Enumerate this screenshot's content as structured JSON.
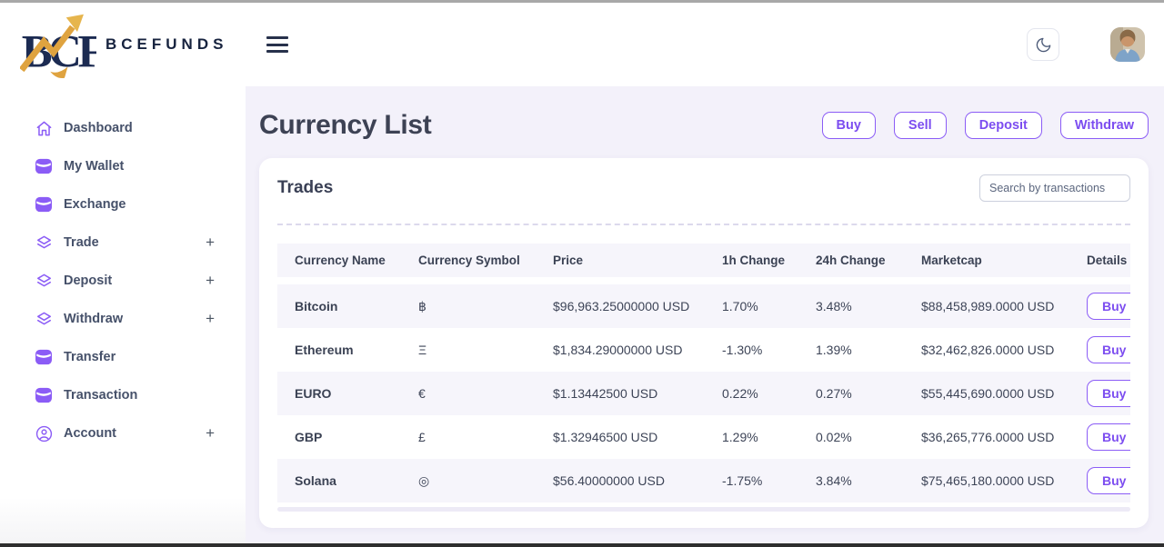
{
  "brand": {
    "monogram": "BCF",
    "name": "BCEFUNDS"
  },
  "sidebar": {
    "items": [
      {
        "label": "Dashboard",
        "icon": "home",
        "expandable": false
      },
      {
        "label": "My Wallet",
        "icon": "wallet",
        "expandable": false
      },
      {
        "label": "Exchange",
        "icon": "wallet",
        "expandable": false
      },
      {
        "label": "Trade",
        "icon": "layers",
        "expandable": true
      },
      {
        "label": "Deposit",
        "icon": "layers",
        "expandable": true
      },
      {
        "label": "Withdraw",
        "icon": "layers",
        "expandable": true
      },
      {
        "label": "Transfer",
        "icon": "wallet",
        "expandable": false
      },
      {
        "label": "Transaction",
        "icon": "wallet",
        "expandable": false
      },
      {
        "label": "Account",
        "icon": "user",
        "expandable": true
      }
    ]
  },
  "page": {
    "title": "Currency List",
    "actions": [
      "Buy",
      "Sell",
      "Deposit",
      "Withdraw"
    ]
  },
  "trades": {
    "title": "Trades",
    "search_placeholder": "Search by transactions",
    "table": {
      "columns": [
        "Currency Name",
        "Currency Symbol",
        "Price",
        "1h Change",
        "24h Change",
        "Marketcap",
        "Details"
      ],
      "rows": [
        {
          "name": "Bitcoin",
          "symbol": "฿",
          "price": "$96,963.25000000 USD",
          "change_1h": "1.70%",
          "change_24h": "3.48%",
          "marketcap": "$88,458,989.0000 USD",
          "action": "Buy"
        },
        {
          "name": "Ethereum",
          "symbol": "Ξ",
          "price": "$1,834.29000000 USD",
          "change_1h": "-1.30%",
          "change_24h": "1.39%",
          "marketcap": "$32,462,826.0000 USD",
          "action": "Buy"
        },
        {
          "name": "EURO",
          "symbol": "€",
          "price": "$1.13442500 USD",
          "change_1h": "0.22%",
          "change_24h": "0.27%",
          "marketcap": "$55,445,690.0000 USD",
          "action": "Buy"
        },
        {
          "name": "GBP",
          "symbol": "£",
          "price": "$1.32946500 USD",
          "change_1h": "1.29%",
          "change_24h": "0.02%",
          "marketcap": "$36,265,776.0000 USD",
          "action": "Buy"
        },
        {
          "name": "Solana",
          "symbol": "◎",
          "price": "$56.40000000 USD",
          "change_1h": "-1.75%",
          "change_24h": "3.84%",
          "marketcap": "$75,465,180.0000 USD",
          "action": "Buy"
        }
      ]
    }
  },
  "colors": {
    "accent": "#8b5cf6",
    "navy": "#1c2b52",
    "gold": "#dfa33f",
    "page_bg": "#f3f1fa",
    "stripe": "#f6f5fb"
  }
}
